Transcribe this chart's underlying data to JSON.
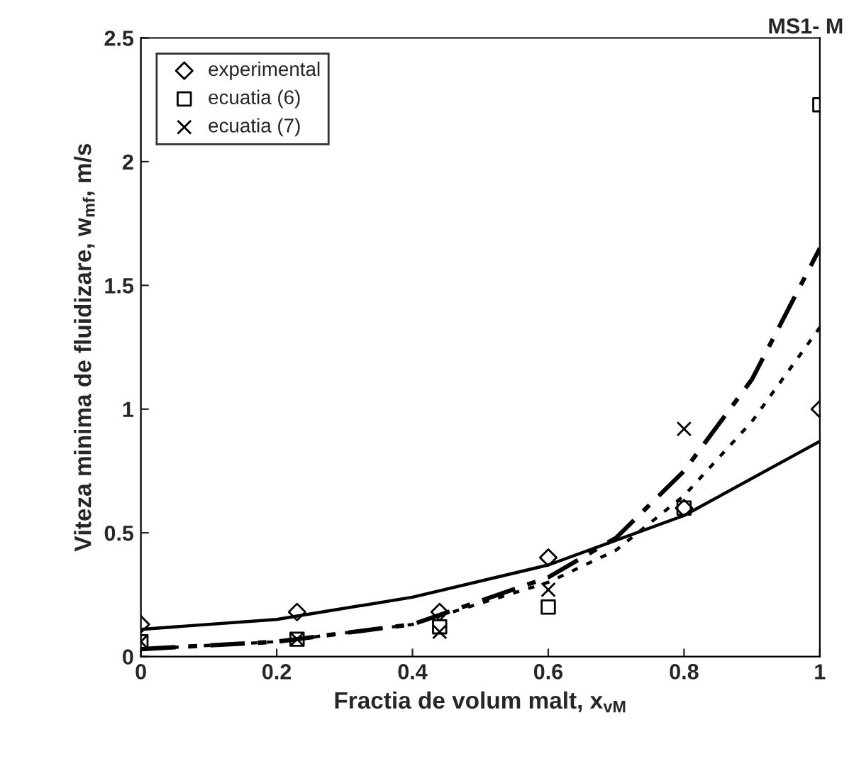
{
  "chart_data": {
    "type": "scatter",
    "xlabel": "Fractia de volum malt, x$_{vM}$",
    "ylabel": "Viteza minima de fluidizare, w$_{mf}$, m/s",
    "annotations": [
      "MS1- M"
    ],
    "xlim": [
      0,
      1
    ],
    "xticks": [
      0,
      0.2,
      0.4,
      0.6,
      0.8,
      1
    ],
    "ylim": [
      0,
      2.5
    ],
    "yticks": [
      0,
      0.5,
      1,
      1.5,
      2,
      2.5
    ],
    "grid": false,
    "legend": "top left",
    "series": [
      {
        "name": "experimental",
        "marker": "diamond",
        "color": "#000000",
        "x": [
          0,
          0.23,
          0.44,
          0.6,
          0.8,
          1
        ],
        "values": [
          0.13,
          0.18,
          0.18,
          0.4,
          0.6,
          1.0
        ]
      },
      {
        "name": "ecuatia (6)",
        "marker": "square",
        "color": "#000000",
        "x": [
          0,
          0.23,
          0.44,
          0.6,
          0.8,
          1
        ],
        "values": [
          0.06,
          0.07,
          0.12,
          0.2,
          0.6,
          2.23
        ]
      },
      {
        "name": "ecuatia (7)",
        "marker": "cross",
        "color": "#000000",
        "x": [
          0,
          0.23,
          0.44,
          0.6,
          0.8
        ],
        "values": [
          0.06,
          0.07,
          0.1,
          0.27,
          0.92
        ]
      },
      {
        "type": "line",
        "line_style": "solid",
        "color": "#000000",
        "x": [
          0,
          0.2,
          0.4,
          0.6,
          0.8,
          1
        ],
        "values": [
          0.11,
          0.15,
          0.24,
          0.37,
          0.57,
          0.87
        ]
      },
      {
        "type": "line",
        "line_style": "dashed",
        "color": "#000000",
        "x": [
          0,
          0.2,
          0.4,
          0.6,
          0.7,
          0.8,
          0.9,
          1
        ],
        "values": [
          0.03,
          0.06,
          0.13,
          0.32,
          0.48,
          0.75,
          1.12,
          1.65
        ]
      },
      {
        "type": "line",
        "line_style": "dotted",
        "color": "#000000",
        "x": [
          0,
          0.2,
          0.4,
          0.6,
          0.7,
          0.8,
          0.9,
          1
        ],
        "values": [
          0.03,
          0.06,
          0.13,
          0.3,
          0.43,
          0.65,
          0.95,
          1.33
        ]
      }
    ]
  }
}
